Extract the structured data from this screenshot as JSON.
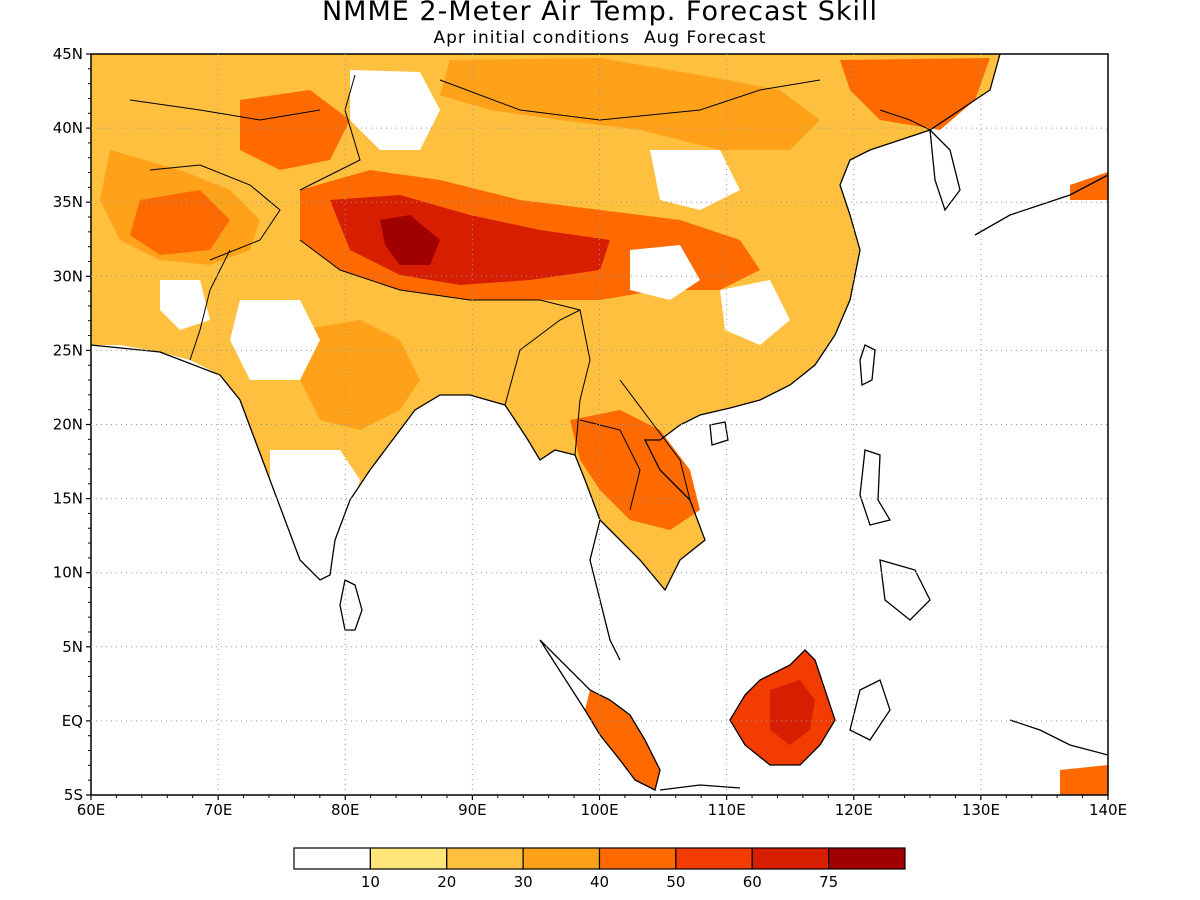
{
  "title": "NMME 2-Meter Air Temp. Forecast Skill",
  "subtitle": {
    "initial": "Apr initial conditions",
    "forecast": "Aug Forecast"
  },
  "map": {
    "lon_range": [
      60,
      140
    ],
    "lat_range": [
      -5,
      45
    ],
    "lon_labels": [
      "60E",
      "70E",
      "80E",
      "90E",
      "100E",
      "110E",
      "120E",
      "130E",
      "140E"
    ],
    "lat_labels": [
      "5S",
      "EQ",
      "5N",
      "10N",
      "15N",
      "20N",
      "25N",
      "30N",
      "35N",
      "40N",
      "45N"
    ],
    "grid": "dotted"
  },
  "colorbar": {
    "colors": [
      "#ffffff",
      "#ffe57a",
      "#ffc040",
      "#ffa21a",
      "#ff6a00",
      "#f23c00",
      "#d81e00",
      "#a00000"
    ],
    "labels": [
      "10",
      "20",
      "30",
      "40",
      "50",
      "60",
      "75"
    ]
  }
}
